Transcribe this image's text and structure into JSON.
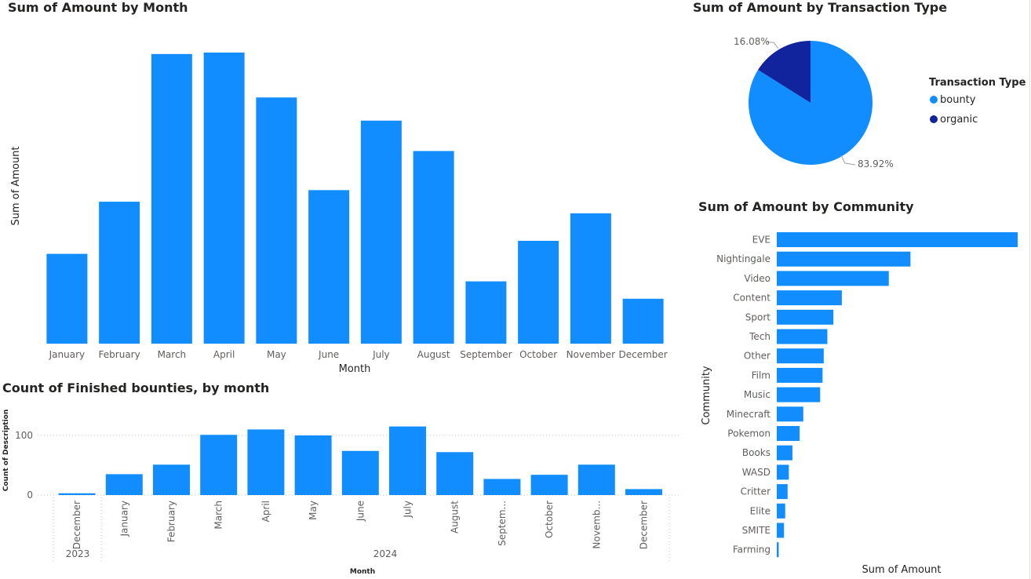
{
  "colors": {
    "bar": "#118dff",
    "bounty": "#118dff",
    "organic": "#12239e",
    "gridline": "#c8c6c4",
    "text": "#252423",
    "tick": "#605e5c"
  },
  "monthly_chart": {
    "title": "Sum of Amount by Month",
    "xlabel": "Month",
    "ylabel": "Sum of Amount"
  },
  "bounties_chart": {
    "title": "Count of Finished bounties, by month",
    "xlabel": "Month",
    "ylabel": "Count of Description",
    "y_ticks": [
      "100",
      "0"
    ],
    "year_labels": [
      "2023",
      "2024"
    ]
  },
  "pie_chart": {
    "title": "Sum of Amount by Transaction Type",
    "legend_title": "Transaction Type",
    "legend_items": [
      "bounty",
      "organic"
    ],
    "labels": [
      "83.92%",
      "16.08%"
    ]
  },
  "community_chart": {
    "title": "Sum of Amount by Community",
    "xlabel": "Sum of Amount",
    "ylabel": "Community"
  },
  "chart_data": [
    {
      "type": "bar",
      "title": "Sum of Amount by Month",
      "xlabel": "Month",
      "ylabel": "Sum of Amount",
      "categories": [
        "January",
        "February",
        "March",
        "April",
        "May",
        "June",
        "July",
        "August",
        "September",
        "October",
        "November",
        "December"
      ],
      "values": [
        31,
        49,
        100,
        100.5,
        85,
        53,
        77,
        66.5,
        21.5,
        35.5,
        45,
        15.5
      ],
      "ylim": [
        0,
        100.5
      ],
      "grid": false
    },
    {
      "type": "bar",
      "title": "Count of Finished bounties, by month",
      "xlabel": "Month",
      "ylabel": "Count of Description",
      "categories": [
        "December",
        "January",
        "February",
        "March",
        "April",
        "May",
        "June",
        "July",
        "August",
        "Septem...",
        "October",
        "Novemb...",
        "December"
      ],
      "years": [
        "2023",
        "2024",
        "2024",
        "2024",
        "2024",
        "2024",
        "2024",
        "2024",
        "2024",
        "2024",
        "2024",
        "2024",
        "2024"
      ],
      "values": [
        3,
        35,
        51,
        101,
        110,
        100,
        74,
        115,
        72,
        27,
        34,
        51,
        10
      ],
      "ylim": [
        0,
        130
      ],
      "y_ticks": [
        0,
        100
      ],
      "grid": true
    },
    {
      "type": "pie",
      "title": "Sum of Amount by Transaction Type",
      "categories": [
        "bounty",
        "organic"
      ],
      "values": [
        83.92,
        16.08
      ],
      "labels": [
        "83.92%",
        "16.08%"
      ],
      "legend": "right"
    },
    {
      "type": "bar",
      "orientation": "horizontal",
      "title": "Sum of Amount by Community",
      "xlabel": "Sum of Amount",
      "ylabel": "Community",
      "categories": [
        "EVE",
        "Nightingale",
        "Video",
        "Content",
        "Sport",
        "Tech",
        "Other",
        "Film",
        "Music",
        "Minecraft",
        "Pokemon",
        "Books",
        "WASD",
        "Critter",
        "Elite",
        "SMITE",
        "Farming"
      ],
      "values": [
        100,
        55.5,
        46.5,
        27,
        23.5,
        21,
        19.5,
        19,
        18,
        11,
        9.5,
        6.5,
        5,
        4.5,
        3.5,
        3,
        0.8
      ],
      "xlim": [
        0,
        100
      ]
    }
  ]
}
